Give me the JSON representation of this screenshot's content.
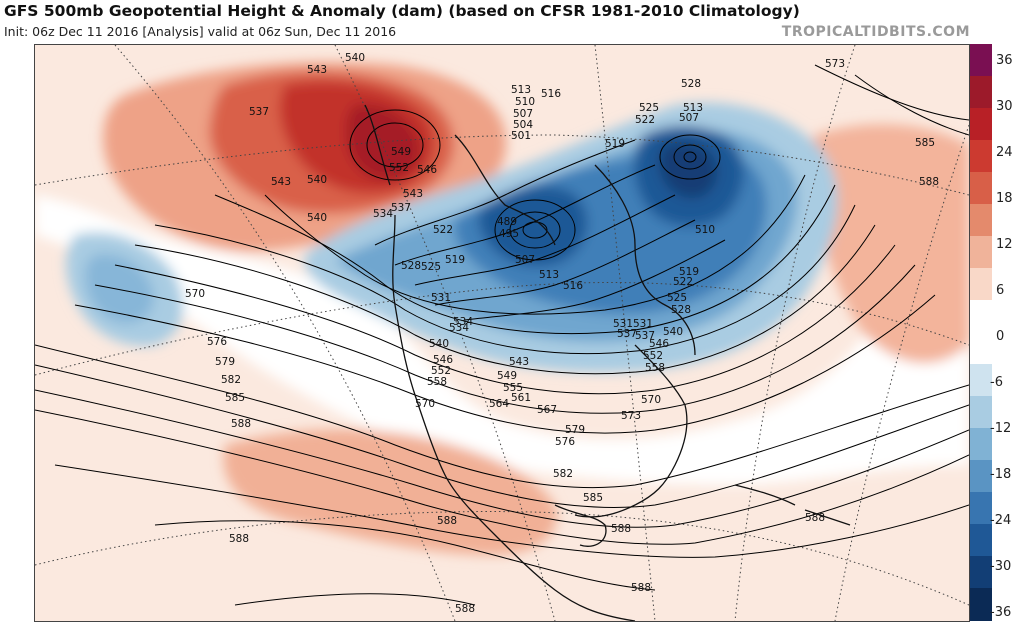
{
  "title": "GFS 500mb Geopotential Height & Anomaly (dam) (based on CFSR 1981-2010 Climatology)",
  "subtitle": "Init: 06z Dec 11 2016   [Analysis]   valid at 06z Sun, Dec 11 2016",
  "source": "TROPICALTIDBITS.COM",
  "colorbar": {
    "ticks": [
      "36",
      "30",
      "24",
      "18",
      "12",
      "6",
      "0",
      "-6",
      "-12",
      "-18",
      "-24",
      "-30",
      "-36"
    ],
    "colors": [
      "#7a0f52",
      "#9c1a2a",
      "#b82026",
      "#cc3a30",
      "#d85f48",
      "#e48a6c",
      "#f0b39a",
      "#f9d8c8",
      "#ffffff",
      "#ffffff",
      "#cfe3ef",
      "#a9cce2",
      "#80b2d4",
      "#5a94c3",
      "#3875b0",
      "#1f5896",
      "#123e75",
      "#0b2a55"
    ]
  },
  "contour_labels": [
    {
      "text": "543"
    },
    {
      "text": "540"
    },
    {
      "text": "537"
    },
    {
      "text": "543"
    },
    {
      "text": "540"
    },
    {
      "text": "540"
    },
    {
      "text": "552"
    },
    {
      "text": "549"
    },
    {
      "text": "546"
    },
    {
      "text": "543"
    },
    {
      "text": "537"
    },
    {
      "text": "534"
    },
    {
      "text": "513"
    },
    {
      "text": "510"
    },
    {
      "text": "507"
    },
    {
      "text": "504"
    },
    {
      "text": "501"
    },
    {
      "text": "516"
    },
    {
      "text": "528"
    },
    {
      "text": "525"
    },
    {
      "text": "522"
    },
    {
      "text": "519"
    },
    {
      "text": "513"
    },
    {
      "text": "507"
    },
    {
      "text": "573"
    },
    {
      "text": "585"
    },
    {
      "text": "588"
    },
    {
      "text": "522"
    },
    {
      "text": "528"
    },
    {
      "text": "525"
    },
    {
      "text": "519"
    },
    {
      "text": "489"
    },
    {
      "text": "495"
    },
    {
      "text": "507"
    },
    {
      "text": "513"
    },
    {
      "text": "516"
    },
    {
      "text": "510"
    },
    {
      "text": "519"
    },
    {
      "text": "522"
    },
    {
      "text": "525"
    },
    {
      "text": "528"
    },
    {
      "text": "531"
    },
    {
      "text": "570"
    },
    {
      "text": "531"
    },
    {
      "text": "537"
    },
    {
      "text": "534"
    },
    {
      "text": "540"
    },
    {
      "text": "546"
    },
    {
      "text": "552"
    },
    {
      "text": "558"
    },
    {
      "text": "543"
    },
    {
      "text": "549"
    },
    {
      "text": "555"
    },
    {
      "text": "561"
    },
    {
      "text": "564"
    },
    {
      "text": "570"
    },
    {
      "text": "567"
    },
    {
      "text": "531"
    },
    {
      "text": "537"
    },
    {
      "text": "540"
    },
    {
      "text": "546"
    },
    {
      "text": "552"
    },
    {
      "text": "558"
    },
    {
      "text": "576"
    },
    {
      "text": "579"
    },
    {
      "text": "582"
    },
    {
      "text": "585"
    },
    {
      "text": "588"
    },
    {
      "text": "570"
    },
    {
      "text": "573"
    },
    {
      "text": "579"
    },
    {
      "text": "576"
    },
    {
      "text": "582"
    },
    {
      "text": "585"
    },
    {
      "text": "588"
    },
    {
      "text": "588"
    },
    {
      "text": "588"
    },
    {
      "text": "588"
    },
    {
      "text": "588"
    },
    {
      "text": "588"
    },
    {
      "text": "534"
    }
  ]
}
